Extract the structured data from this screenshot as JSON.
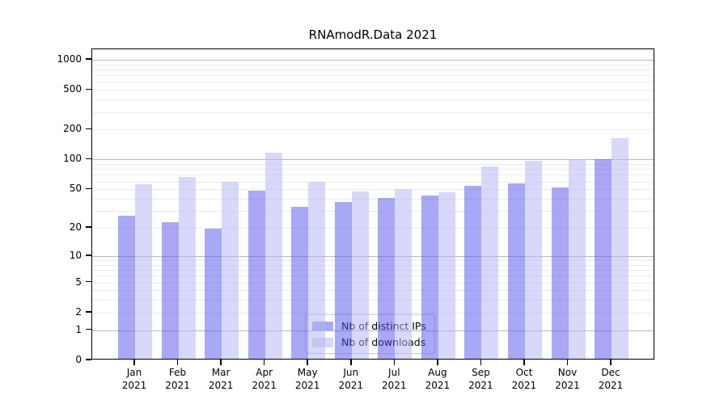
{
  "chart_data": {
    "type": "bar",
    "title": "RNAmodR.Data 2021",
    "categories": [
      "Jan",
      "Feb",
      "Mar",
      "Apr",
      "May",
      "Jun",
      "Jul",
      "Aug",
      "Sep",
      "Oct",
      "Nov",
      "Dec"
    ],
    "category_sublabel": "2021",
    "series": [
      {
        "name": "Nb of distinct IPs",
        "color": "#a8a8f6",
        "fill": "rgba(82,82,238,0.5)",
        "values": [
          26,
          22,
          19,
          47,
          32,
          36,
          39,
          42,
          52,
          55,
          50,
          97
        ]
      },
      {
        "name": "Nb of downloads",
        "color": "#d8d8fa",
        "fill": "rgba(177,177,245,0.5)",
        "values": [
          54,
          64,
          57,
          113,
          57,
          46,
          48,
          45,
          82,
          94,
          95,
          158
        ]
      }
    ],
    "y_ticks": [
      0,
      1,
      2,
      5,
      10,
      20,
      50,
      100,
      200,
      500,
      1000
    ],
    "y_scale": "log10(value+1)",
    "ylim": [
      0,
      1273
    ],
    "grid": {
      "minor_values": [
        2,
        3,
        4,
        5,
        6,
        7,
        8,
        9,
        20,
        30,
        40,
        50,
        60,
        70,
        80,
        90,
        200,
        300,
        400,
        500,
        600,
        700,
        800,
        900
      ],
      "major_values": [
        1,
        10,
        100,
        1000
      ],
      "minor_color": "#ebebeb",
      "major_color": "#b8b8b8"
    },
    "legend_position": "lower center"
  }
}
